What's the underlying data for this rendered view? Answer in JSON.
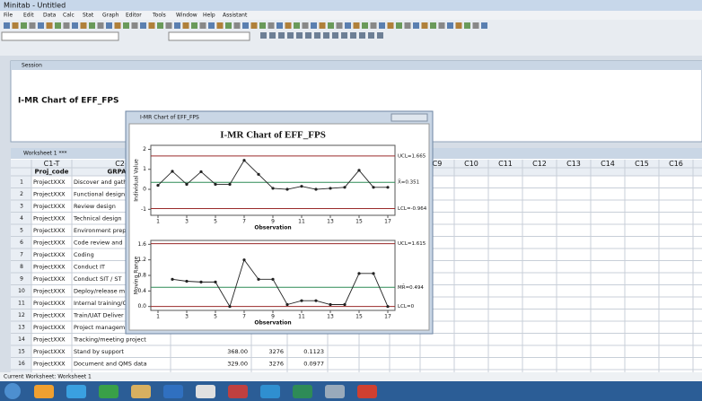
{
  "window": {
    "title": "Minitab - Untitled"
  },
  "menu": [
    "File",
    "Edit",
    "Data",
    "Calc",
    "Stat",
    "Graph",
    "Editor",
    "Tools",
    "Window",
    "Help",
    "Assistant"
  ],
  "session": {
    "title": "Session",
    "heading": "I-MR Chart of EFF_FPS"
  },
  "worksheet": {
    "title": "Worksheet 1 ***",
    "columns": [
      "C1-T",
      "C2-",
      "C9",
      "C10",
      "C11",
      "C12",
      "C13",
      "C14",
      "C15",
      "C16"
    ],
    "names": [
      "Proj_code",
      "GRPACT"
    ],
    "rows": [
      [
        "1",
        "ProjectXXX",
        "Discover and gath"
      ],
      [
        "2",
        "ProjectXXX",
        "Functional design"
      ],
      [
        "3",
        "ProjectXXX",
        "Review design"
      ],
      [
        "4",
        "ProjectXXX",
        "Technical design"
      ],
      [
        "5",
        "ProjectXXX",
        "Environment prep"
      ],
      [
        "6",
        "ProjectXXX",
        "Code review and"
      ],
      [
        "7",
        "ProjectXXX",
        "Coding"
      ],
      [
        "8",
        "ProjectXXX",
        "Conduct IT"
      ],
      [
        "9",
        "ProjectXXX",
        "Conduct SIT / ST"
      ],
      [
        "10",
        "ProjectXXX",
        "Deploy/release m"
      ],
      [
        "11",
        "ProjectXXX",
        "Internal training/C"
      ],
      [
        "12",
        "ProjectXXX",
        "Train/UAT Deliver"
      ],
      [
        "13",
        "ProjectXXX",
        "Project managem"
      ],
      [
        "14",
        "ProjectXXX",
        "Tracking/meeting project"
      ],
      [
        "15",
        "ProjectXXX",
        "Stand by support",
        "368.00",
        "3276",
        "0.1123"
      ],
      [
        "16",
        "ProjectXXX",
        "Document and QMS data",
        "329.00",
        "3276",
        "0.0977"
      ]
    ]
  },
  "graph_window": {
    "title": "I-MR Chart of EFF_FPS"
  },
  "chart_data": [
    {
      "type": "line",
      "title": "I-MR Chart of EFF_FPS",
      "ylabel": "Individual Value",
      "xlabel": "Observation",
      "x": [
        1,
        2,
        3,
        4,
        5,
        6,
        7,
        8,
        9,
        10,
        11,
        12,
        13,
        14,
        15,
        16,
        17
      ],
      "values": [
        0.2,
        0.9,
        0.25,
        0.88,
        0.25,
        0.25,
        1.45,
        0.75,
        0.05,
        0.0,
        0.15,
        0.0,
        0.05,
        0.1,
        0.95,
        0.1,
        0.1
      ],
      "color": "#222222",
      "xlim": [
        0.5,
        17.5
      ],
      "xticks": [
        1,
        3,
        5,
        7,
        9,
        11,
        13,
        15,
        17
      ],
      "ylim": [
        -1.3,
        2.2
      ],
      "yticks": [
        -1,
        0,
        1,
        2
      ],
      "limits": [
        {
          "value": 1.665,
          "label": "UCL=1.665",
          "color": "#9a2a2a"
        },
        {
          "value": 0.351,
          "label": "X̄=0.351",
          "color": "#2e8b57"
        },
        {
          "value": -0.964,
          "label": "LCL=-0.964",
          "color": "#9a2a2a"
        }
      ]
    },
    {
      "type": "line",
      "ylabel": "Moving Range",
      "xlabel": "Observation",
      "x": [
        2,
        3,
        4,
        5,
        6,
        7,
        8,
        9,
        10,
        11,
        12,
        13,
        14,
        15,
        16,
        17
      ],
      "values": [
        0.7,
        0.65,
        0.63,
        0.63,
        0.0,
        1.2,
        0.7,
        0.7,
        0.05,
        0.15,
        0.15,
        0.05,
        0.05,
        0.85,
        0.85,
        0.0
      ],
      "color": "#222222",
      "xlim": [
        0.5,
        17.5
      ],
      "xticks": [
        1,
        3,
        5,
        7,
        9,
        11,
        13,
        15,
        17
      ],
      "ylim": [
        -0.1,
        1.7
      ],
      "yticks": [
        {
          "value": 0,
          "label": "0.0"
        },
        {
          "value": 0.4,
          "label": "0.4"
        },
        {
          "value": 0.8,
          "label": "0.8"
        },
        {
          "value": 1.2,
          "label": "1.2"
        },
        {
          "value": 1.6,
          "label": "1.6"
        }
      ],
      "limits": [
        {
          "value": 1.615,
          "label": "UCL=1.615",
          "color": "#9a2a2a"
        },
        {
          "value": 0.494,
          "label": "MR̄=0.494",
          "color": "#2e8b57"
        },
        {
          "value": 0,
          "label": "LCL=0",
          "color": "#9a2a2a"
        }
      ]
    }
  ],
  "status_bar": "Current Worksheet: Worksheet 1"
}
